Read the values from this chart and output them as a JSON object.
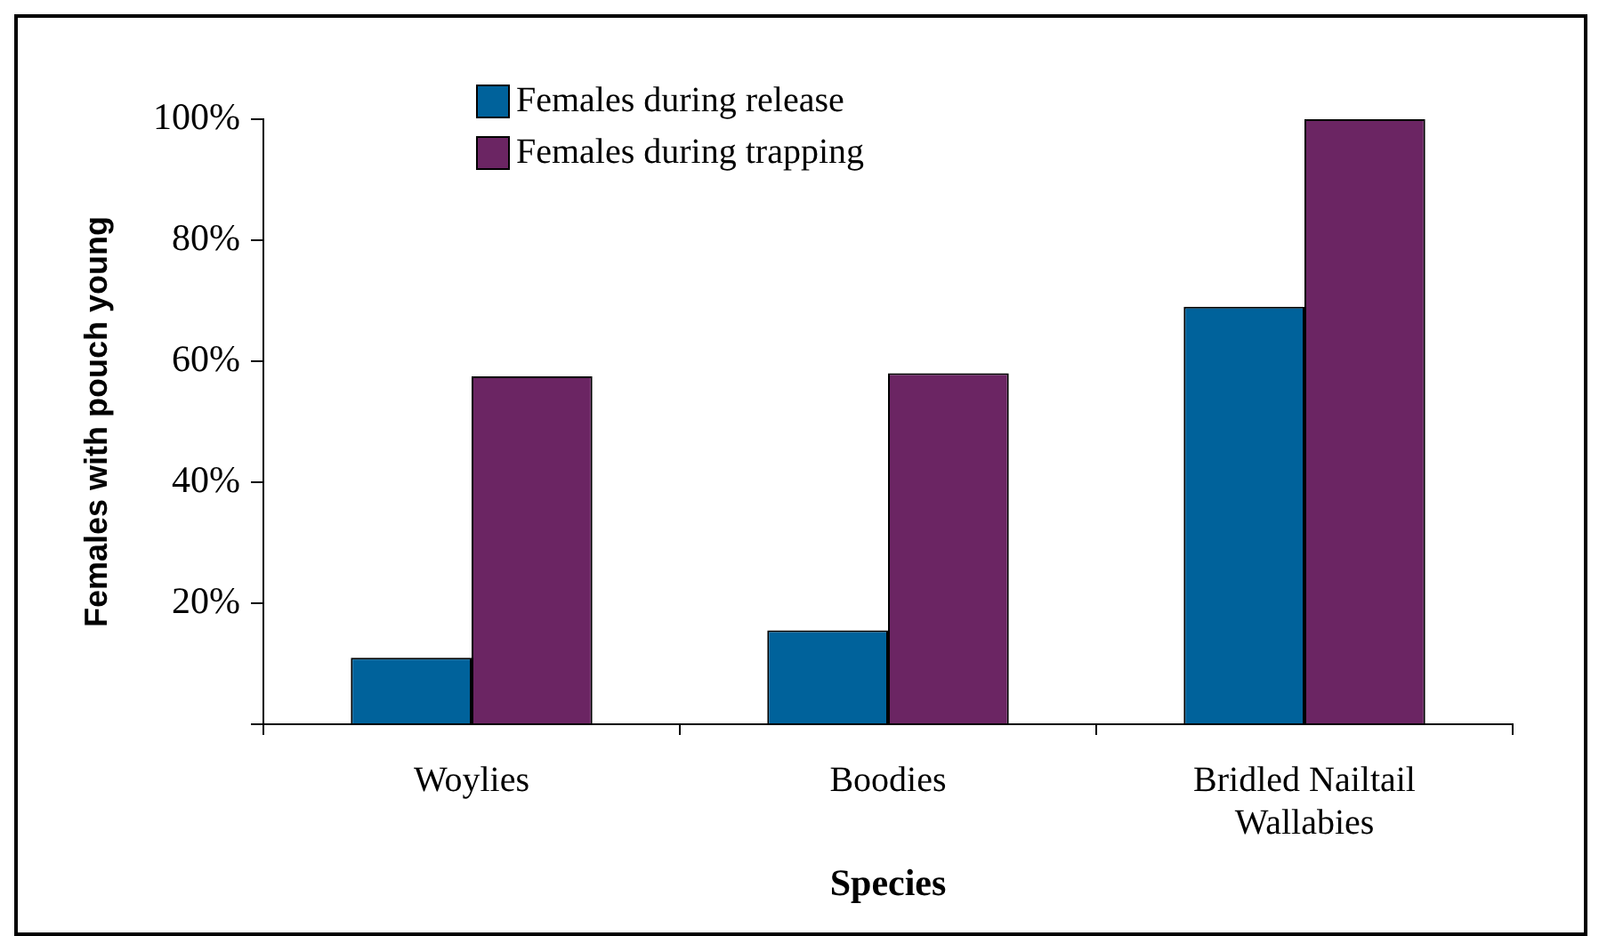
{
  "chart_data": {
    "type": "bar",
    "xlabel": "Species",
    "ylabel": "Females with pouch young",
    "categories": [
      "Woylies",
      "Boodies",
      "Bridled Nailtail Wallabies"
    ],
    "series": [
      {
        "name": "Females during release",
        "color": "#00629b",
        "values": [
          11,
          15.5,
          69
        ]
      },
      {
        "name": "Females during trapping",
        "color": "#6b2563",
        "values": [
          57.5,
          58,
          100
        ]
      }
    ],
    "ylim": [
      0,
      100
    ],
    "yticks": [
      {
        "value": 0,
        "label": null
      },
      {
        "value": 20,
        "label": "20%"
      },
      {
        "value": 40,
        "label": "40%"
      },
      {
        "value": 60,
        "label": "60%"
      },
      {
        "value": 80,
        "label": "80%"
      },
      {
        "value": 100,
        "label": "100%"
      }
    ],
    "grid": false,
    "legend": "top"
  }
}
